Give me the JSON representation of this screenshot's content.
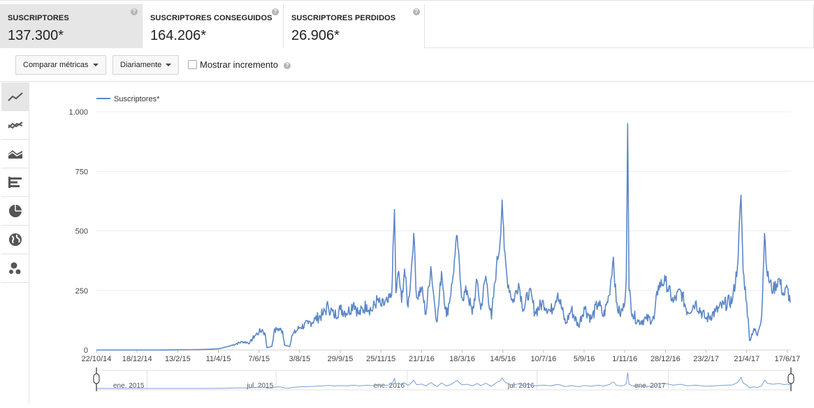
{
  "metrics": [
    {
      "label": "SUSCRIPTORES",
      "value": "137.300*",
      "selected": true
    },
    {
      "label": "SUSCRIPTORES CONSEGUIDOS",
      "value": "164.206*",
      "selected": false
    },
    {
      "label": "SUSCRIPTORES PERDIDOS",
      "value": "26.906*",
      "selected": false
    }
  ],
  "help_glyph": "?",
  "toolbar": {
    "compare_label": "Comparar métricas",
    "interval_label": "Diariamente",
    "show_increment_label": "Mostrar incremento",
    "show_increment_checked": false
  },
  "chart_types": [
    "line-chart-icon",
    "multi-line-chart-icon",
    "area-chart-icon",
    "bar-chart-icon",
    "pie-chart-icon",
    "globe-map-icon",
    "bubble-chart-icon"
  ],
  "chart_data": {
    "type": "line",
    "legend": "top-left",
    "series": [
      {
        "name": "Suscriptores*",
        "color": "#5b87c7"
      }
    ],
    "ylim": [
      0,
      1000
    ],
    "yticks": [
      0,
      250,
      500,
      750,
      1000
    ],
    "ytick_labels": [
      "0",
      "250",
      "500",
      "750",
      "1.000"
    ],
    "xlim": [
      "2014-10-22",
      "2017-06-22"
    ],
    "xtick_labels": [
      "22/10/14",
      "18/12/14",
      "13/2/15",
      "11/4/15",
      "7/6/15",
      "3/8/15",
      "29/9/15",
      "25/11/15",
      "21/1/16",
      "18/3/16",
      "14/5/16",
      "10/7/16",
      "5/9/16",
      "1/11/16",
      "28/12/16",
      "23/2/17",
      "21/4/17",
      "17/6/17"
    ],
    "xtick_dates": [
      "2014-10-22",
      "2014-12-18",
      "2015-02-13",
      "2015-04-11",
      "2015-06-07",
      "2015-08-03",
      "2015-09-29",
      "2015-11-25",
      "2016-01-21",
      "2016-03-18",
      "2016-05-14",
      "2016-07-10",
      "2016-09-05",
      "2016-11-01",
      "2016-12-28",
      "2017-02-23",
      "2017-04-21",
      "2017-06-17"
    ],
    "grid": true,
    "points": [
      [
        "2014-10-22",
        0
      ],
      [
        "2015-01-15",
        0
      ],
      [
        "2015-03-20",
        2
      ],
      [
        "2015-04-11",
        5
      ],
      [
        "2015-04-25",
        15
      ],
      [
        "2015-05-05",
        25
      ],
      [
        "2015-05-15",
        35
      ],
      [
        "2015-05-25",
        30
      ],
      [
        "2015-06-01",
        60
      ],
      [
        "2015-06-07",
        75
      ],
      [
        "2015-06-12",
        85
      ],
      [
        "2015-06-16",
        60
      ],
      [
        "2015-06-18",
        10
      ],
      [
        "2015-06-25",
        15
      ],
      [
        "2015-06-28",
        75
      ],
      [
        "2015-07-03",
        90
      ],
      [
        "2015-07-10",
        80
      ],
      [
        "2015-07-13",
        20
      ],
      [
        "2015-07-20",
        15
      ],
      [
        "2015-07-23",
        60
      ],
      [
        "2015-08-03",
        95
      ],
      [
        "2015-08-15",
        110
      ],
      [
        "2015-08-25",
        130
      ],
      [
        "2015-09-05",
        150
      ],
      [
        "2015-09-12",
        185
      ],
      [
        "2015-09-20",
        145
      ],
      [
        "2015-09-29",
        170
      ],
      [
        "2015-10-10",
        160
      ],
      [
        "2015-10-18",
        200
      ],
      [
        "2015-10-25",
        150
      ],
      [
        "2015-11-05",
        190
      ],
      [
        "2015-11-12",
        165
      ],
      [
        "2015-11-20",
        210
      ],
      [
        "2015-11-25",
        185
      ],
      [
        "2015-12-05",
        200
      ],
      [
        "2015-12-10",
        230
      ],
      [
        "2015-12-14",
        590
      ],
      [
        "2015-12-16",
        240
      ],
      [
        "2015-12-20",
        330
      ],
      [
        "2015-12-24",
        200
      ],
      [
        "2015-12-28",
        340
      ],
      [
        "2016-01-02",
        180
      ],
      [
        "2016-01-06",
        310
      ],
      [
        "2016-01-10",
        490
      ],
      [
        "2016-01-14",
        220
      ],
      [
        "2016-01-21",
        260
      ],
      [
        "2016-01-27",
        150
      ],
      [
        "2016-02-03",
        350
      ],
      [
        "2016-02-08",
        200
      ],
      [
        "2016-02-12",
        120
      ],
      [
        "2016-02-18",
        330
      ],
      [
        "2016-02-25",
        140
      ],
      [
        "2016-03-04",
        280
      ],
      [
        "2016-03-08",
        400
      ],
      [
        "2016-03-11",
        480
      ],
      [
        "2016-03-15",
        300
      ],
      [
        "2016-03-18",
        220
      ],
      [
        "2016-03-25",
        250
      ],
      [
        "2016-04-01",
        150
      ],
      [
        "2016-04-08",
        290
      ],
      [
        "2016-04-13",
        170
      ],
      [
        "2016-04-20",
        310
      ],
      [
        "2016-04-28",
        130
      ],
      [
        "2016-05-05",
        350
      ],
      [
        "2016-05-10",
        450
      ],
      [
        "2016-05-13",
        630
      ],
      [
        "2016-05-16",
        420
      ],
      [
        "2016-05-20",
        300
      ],
      [
        "2016-05-28",
        200
      ],
      [
        "2016-06-05",
        280
      ],
      [
        "2016-06-12",
        170
      ],
      [
        "2016-06-20",
        250
      ],
      [
        "2016-06-28",
        160
      ],
      [
        "2016-07-10",
        200
      ],
      [
        "2016-07-20",
        160
      ],
      [
        "2016-07-30",
        240
      ],
      [
        "2016-08-10",
        110
      ],
      [
        "2016-08-18",
        170
      ],
      [
        "2016-08-28",
        100
      ],
      [
        "2016-09-05",
        180
      ],
      [
        "2016-09-15",
        130
      ],
      [
        "2016-09-25",
        200
      ],
      [
        "2016-10-02",
        140
      ],
      [
        "2016-10-10",
        230
      ],
      [
        "2016-10-16",
        390
      ],
      [
        "2016-10-20",
        200
      ],
      [
        "2016-10-25",
        150
      ],
      [
        "2016-10-31",
        180
      ],
      [
        "2016-11-03",
        300
      ],
      [
        "2016-11-05",
        950
      ],
      [
        "2016-11-07",
        250
      ],
      [
        "2016-11-12",
        150
      ],
      [
        "2016-11-20",
        120
      ],
      [
        "2016-12-01",
        130
      ],
      [
        "2016-12-12",
        130
      ],
      [
        "2016-12-18",
        270
      ],
      [
        "2016-12-28",
        290
      ],
      [
        "2017-01-08",
        200
      ],
      [
        "2017-01-18",
        250
      ],
      [
        "2017-01-28",
        160
      ],
      [
        "2017-02-08",
        200
      ],
      [
        "2017-02-23",
        130
      ],
      [
        "2017-03-08",
        160
      ],
      [
        "2017-03-20",
        190
      ],
      [
        "2017-04-01",
        210
      ],
      [
        "2017-04-08",
        350
      ],
      [
        "2017-04-13",
        650
      ],
      [
        "2017-04-16",
        330
      ],
      [
        "2017-04-21",
        200
      ],
      [
        "2017-04-25",
        40
      ],
      [
        "2017-05-01",
        90
      ],
      [
        "2017-05-06",
        60
      ],
      [
        "2017-05-12",
        150
      ],
      [
        "2017-05-16",
        490
      ],
      [
        "2017-05-20",
        310
      ],
      [
        "2017-05-28",
        250
      ],
      [
        "2017-06-05",
        300
      ],
      [
        "2017-06-12",
        230
      ],
      [
        "2017-06-17",
        260
      ],
      [
        "2017-06-21",
        200
      ]
    ],
    "navigator": {
      "labels": [
        "ene. 2015",
        "jul. 2015",
        "ene. 2016",
        "jul. 2016",
        "ene. 2017"
      ],
      "label_dates": [
        "2015-01-01",
        "2015-07-01",
        "2016-01-01",
        "2016-07-01",
        "2017-01-01"
      ]
    }
  }
}
